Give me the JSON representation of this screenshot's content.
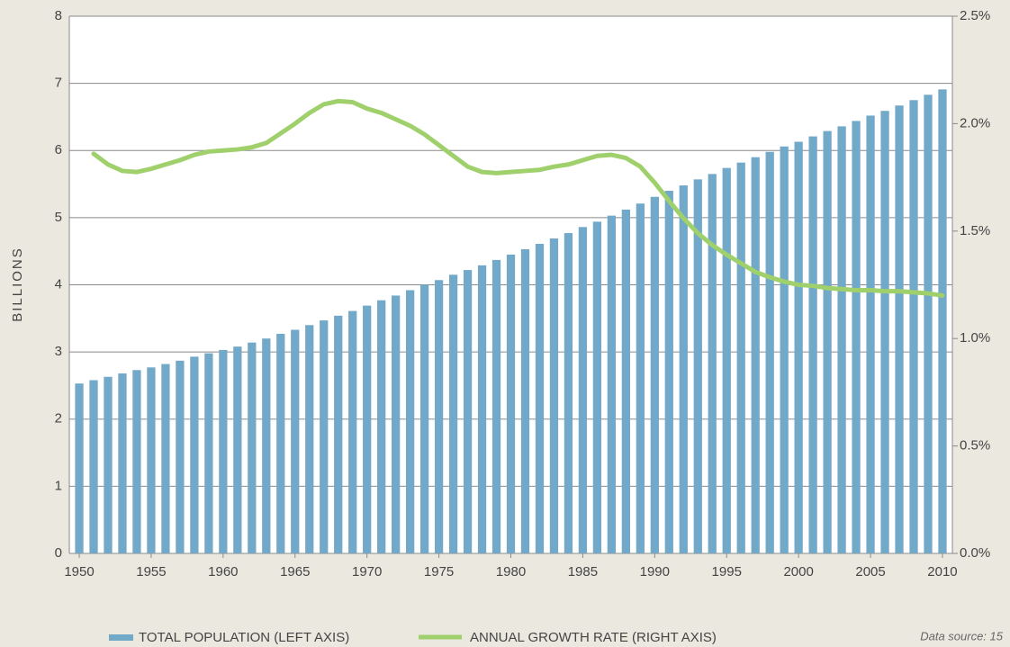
{
  "chart_data": {
    "type": "bar_line",
    "ylabel": "BILLIONS",
    "source": "Data source: 15",
    "x": [
      1950,
      1951,
      1952,
      1953,
      1954,
      1955,
      1956,
      1957,
      1958,
      1959,
      1960,
      1961,
      1962,
      1963,
      1964,
      1965,
      1966,
      1967,
      1968,
      1969,
      1970,
      1971,
      1972,
      1973,
      1974,
      1975,
      1976,
      1977,
      1978,
      1979,
      1980,
      1981,
      1982,
      1983,
      1984,
      1985,
      1986,
      1987,
      1988,
      1989,
      1990,
      1991,
      1992,
      1993,
      1994,
      1995,
      1996,
      1997,
      1998,
      1999,
      2000,
      2001,
      2002,
      2003,
      2004,
      2005,
      2006,
      2007,
      2008,
      2009,
      2010
    ],
    "xlim": [
      1949.31,
      2010.69
    ],
    "xticks": [
      1950,
      1955,
      1960,
      1965,
      1970,
      1975,
      1980,
      1985,
      1990,
      1995,
      2000,
      2005,
      2010
    ],
    "ylim": [
      0,
      8
    ],
    "yticks": [
      0,
      1,
      2,
      3,
      4,
      5,
      6,
      7,
      8
    ],
    "y2lim": [
      0,
      2.5
    ],
    "y2ticks": [
      {
        "value": 0,
        "label": "0.0%"
      },
      {
        "value": 0.5,
        "label": "0.5%"
      },
      {
        "value": 1,
        "label": "1.0%"
      },
      {
        "value": 1.5,
        "label": "1.5%"
      },
      {
        "value": 2,
        "label": "2.0%"
      },
      {
        "value": 2.5,
        "label": "2.5%"
      }
    ],
    "grid": true,
    "series": [
      {
        "name": "TOTAL POPULATION (LEFT AXIS)",
        "type": "bar",
        "color": "#72a9c9",
        "values": [
          2.53,
          2.58,
          2.63,
          2.68,
          2.73,
          2.77,
          2.82,
          2.87,
          2.93,
          2.98,
          3.03,
          3.08,
          3.14,
          3.2,
          3.27,
          3.33,
          3.4,
          3.47,
          3.54,
          3.61,
          3.69,
          3.77,
          3.84,
          3.92,
          4.0,
          4.07,
          4.15,
          4.22,
          4.29,
          4.37,
          4.45,
          4.53,
          4.61,
          4.69,
          4.77,
          4.86,
          4.94,
          5.03,
          5.12,
          5.21,
          5.31,
          5.4,
          5.48,
          5.57,
          5.65,
          5.74,
          5.82,
          5.9,
          5.98,
          6.06,
          6.13,
          6.21,
          6.29,
          6.36,
          6.44,
          6.52,
          6.59,
          6.67,
          6.75,
          6.83,
          6.91
        ]
      },
      {
        "name": "ANNUAL GROWTH RATE (RIGHT AXIS)",
        "type": "line",
        "axis": "y2",
        "color": "#9fd06c",
        "values": [
          null,
          1.86,
          1.81,
          1.78,
          1.775,
          1.79,
          1.81,
          1.83,
          1.855,
          1.87,
          1.875,
          1.88,
          1.89,
          1.91,
          1.955,
          2.0,
          2.05,
          2.09,
          2.105,
          2.1,
          2.07,
          2.05,
          2.02,
          1.99,
          1.95,
          1.9,
          1.85,
          1.8,
          1.775,
          1.77,
          1.775,
          1.78,
          1.785,
          1.8,
          1.81,
          1.83,
          1.85,
          1.855,
          1.84,
          1.8,
          1.725,
          1.64,
          1.56,
          1.49,
          1.435,
          1.39,
          1.35,
          1.31,
          1.285,
          1.265,
          1.25,
          1.245,
          1.235,
          1.23,
          1.225,
          1.225,
          1.22,
          1.22,
          1.215,
          1.21,
          1.2
        ]
      }
    ]
  }
}
